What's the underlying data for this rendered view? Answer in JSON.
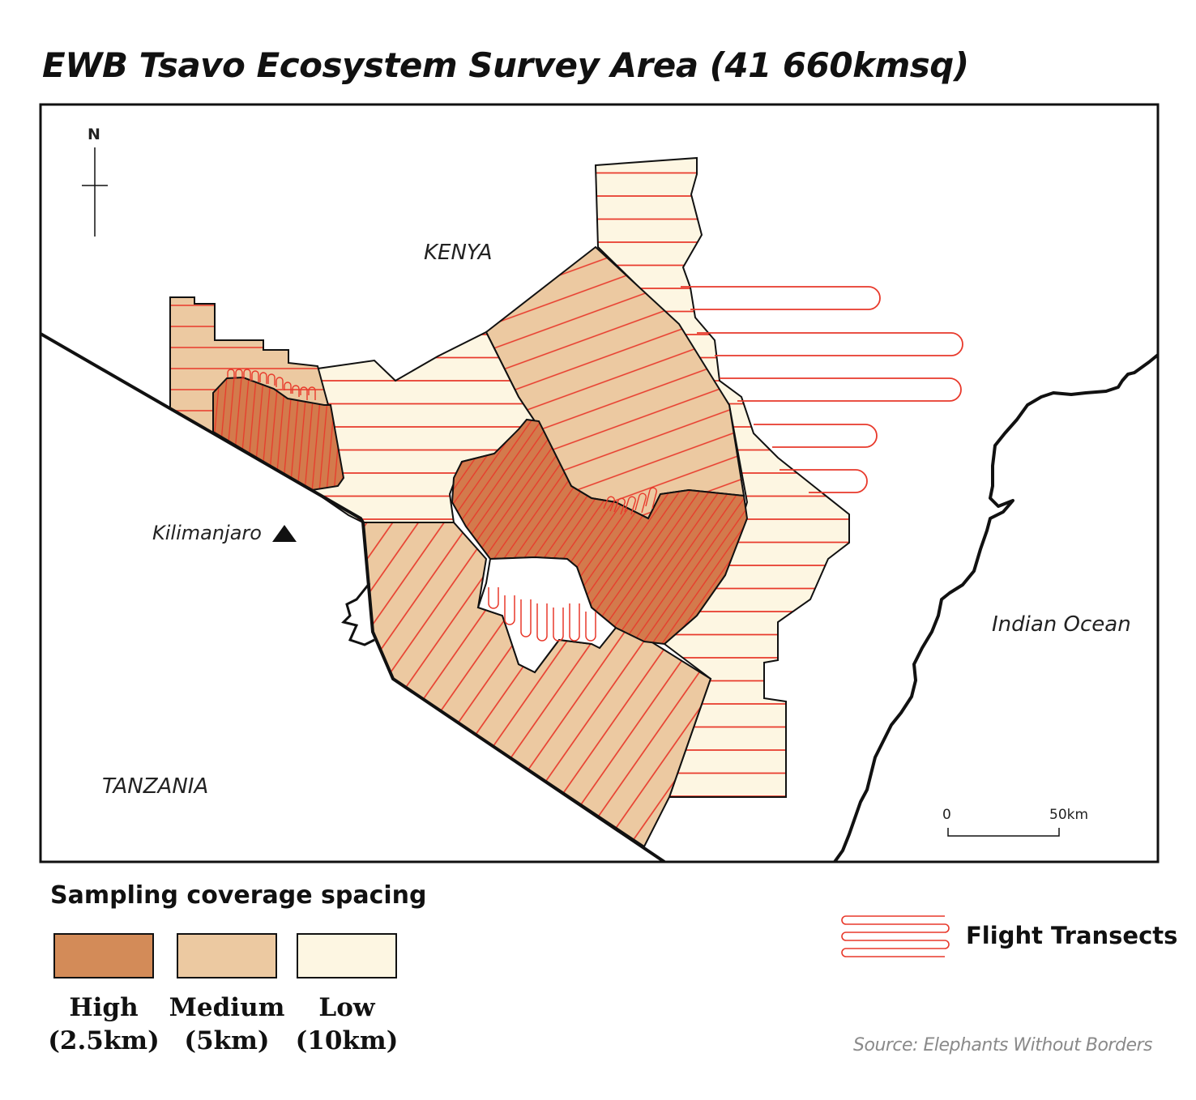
{
  "title": "EWB Tsavo Ecosystem Survey Area (41 660kmsq)",
  "map_labels": {
    "north": "N",
    "kenya": "KENYA",
    "tanzania": "TANZANIA",
    "kilimanjaro": "Kilimanjaro",
    "ocean": "Indian Ocean"
  },
  "scale_bar": {
    "start": "0",
    "end": "50km"
  },
  "legend": {
    "title": "Sampling coverage spacing",
    "items": [
      {
        "name": "High",
        "spacing": "(2.5km)",
        "color": "#d38b58"
      },
      {
        "name": "Medium",
        "spacing": "(5km)",
        "color": "#ecc9a1"
      },
      {
        "name": "Low",
        "spacing": "(10km)",
        "color": "#fdf6e2"
      }
    ],
    "transects_label": "Flight Transects"
  },
  "colors": {
    "high": "#d37a4c",
    "medium": "#ecc9a1",
    "low": "#fdf6e2",
    "transect": "#e8392b",
    "border": "#111111"
  },
  "source": "Source: Elephants Without Borders"
}
